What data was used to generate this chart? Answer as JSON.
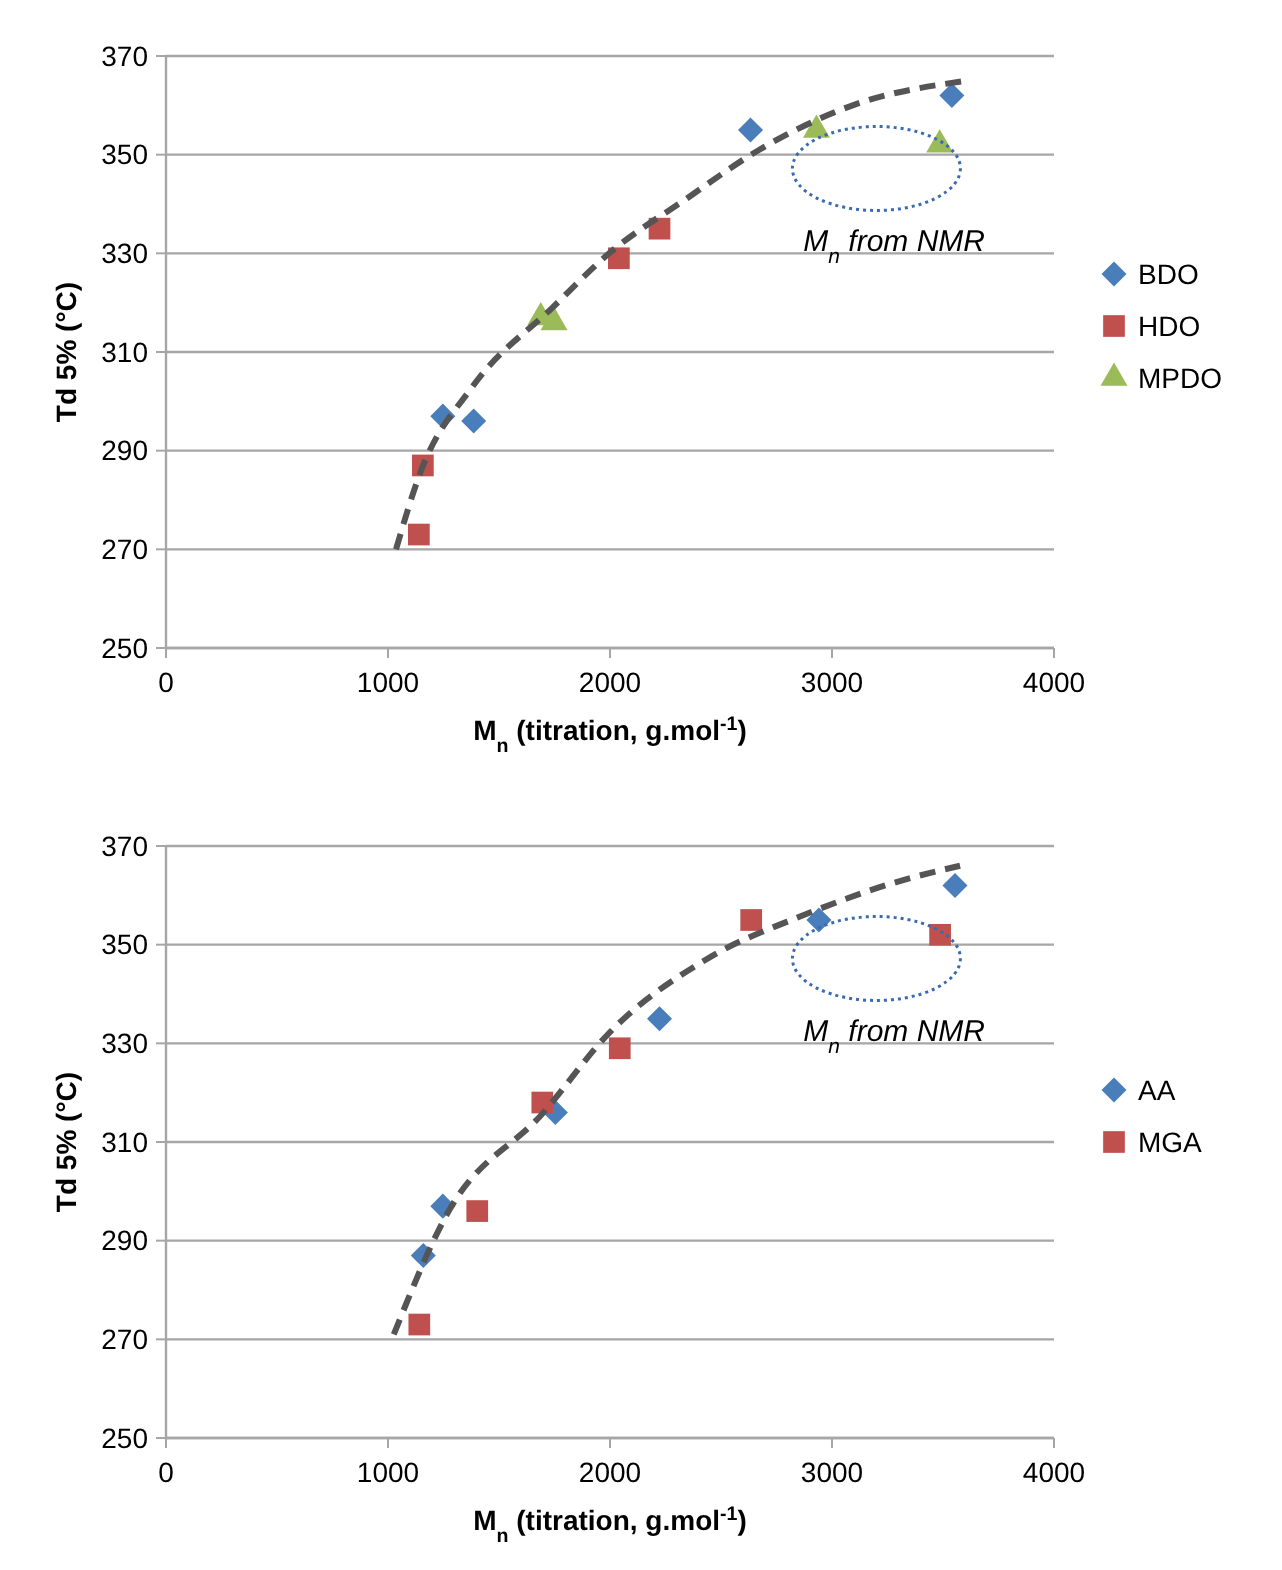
{
  "chart_data": [
    {
      "type": "scatter",
      "xlabel": "M$_{n}$ (titration, g.mol$^{-1}$)",
      "ylabel": "Td 5% (°C)",
      "xlim": [
        0,
        4000
      ],
      "xticks": [
        0,
        1000,
        2000,
        3000,
        4000
      ],
      "ylim": [
        250,
        370
      ],
      "yticks": [
        250,
        270,
        290,
        310,
        330,
        350,
        370
      ],
      "grid": "y",
      "legend": "right",
      "annotations": [
        "M$_{n}$ from NMR"
      ],
      "series": [
        {
          "name": "BDO",
          "color": "#4a7ebb",
          "marker": "diamond",
          "x": [
            1247,
            1386,
            2633,
            3540
          ],
          "values": [
            297,
            296,
            355,
            362
          ]
        },
        {
          "name": "HDO",
          "color": "#c0504d",
          "marker": "square",
          "x": [
            1139,
            1157,
            2040,
            2223
          ],
          "values": [
            273,
            287,
            329,
            335
          ]
        },
        {
          "name": "MPDO",
          "color": "#9bbb59",
          "marker": "triangle",
          "x": [
            1688,
            1748,
            2930,
            3485
          ],
          "values": [
            317,
            316,
            355,
            352
          ]
        },
        {
          "type": "line",
          "color": "#555555",
          "line_style": "dashed",
          "marker": "none",
          "x": [
            1036,
            1141,
            1381,
            1741,
            1996,
            2342,
            2673,
            3093,
            3609
          ],
          "values": [
            270,
            285,
            303,
            319,
            330,
            341,
            351,
            360,
            365
          ]
        }
      ]
    },
    {
      "type": "scatter",
      "xlabel": "M$_{n}$ (titration, g.mol$^{-1}$)",
      "ylabel": "Td 5% (°C)",
      "xlim": [
        0,
        4000
      ],
      "xticks": [
        0,
        1000,
        2000,
        3000,
        4000
      ],
      "ylim": [
        250,
        370
      ],
      "yticks": [
        250,
        270,
        290,
        310,
        330,
        350,
        370
      ],
      "grid": "y",
      "legend": "right",
      "annotations": [
        "M$_{n}$ from NMR"
      ],
      "series": [
        {
          "name": "AA",
          "color": "#4a7ebb",
          "marker": "diamond",
          "x": [
            1159,
            1247,
            1754,
            2223,
            2941,
            3554
          ],
          "values": [
            287,
            297,
            316,
            335,
            355,
            362
          ]
        },
        {
          "name": "MGA",
          "color": "#c0504d",
          "marker": "square",
          "x": [
            1141,
            1402,
            1695,
            2044,
            2636,
            3487
          ],
          "values": [
            273,
            296,
            318,
            329,
            355,
            352
          ]
        },
        {
          "type": "line",
          "color": "#555555",
          "line_style": "dashed",
          "marker": "none",
          "x": [
            1026,
            1261,
            1701,
            1994,
            2433,
            2873,
            3313,
            3577
          ],
          "values": [
            271,
            295,
            316,
            332,
            347,
            356,
            363,
            366
          ]
        }
      ]
    }
  ]
}
